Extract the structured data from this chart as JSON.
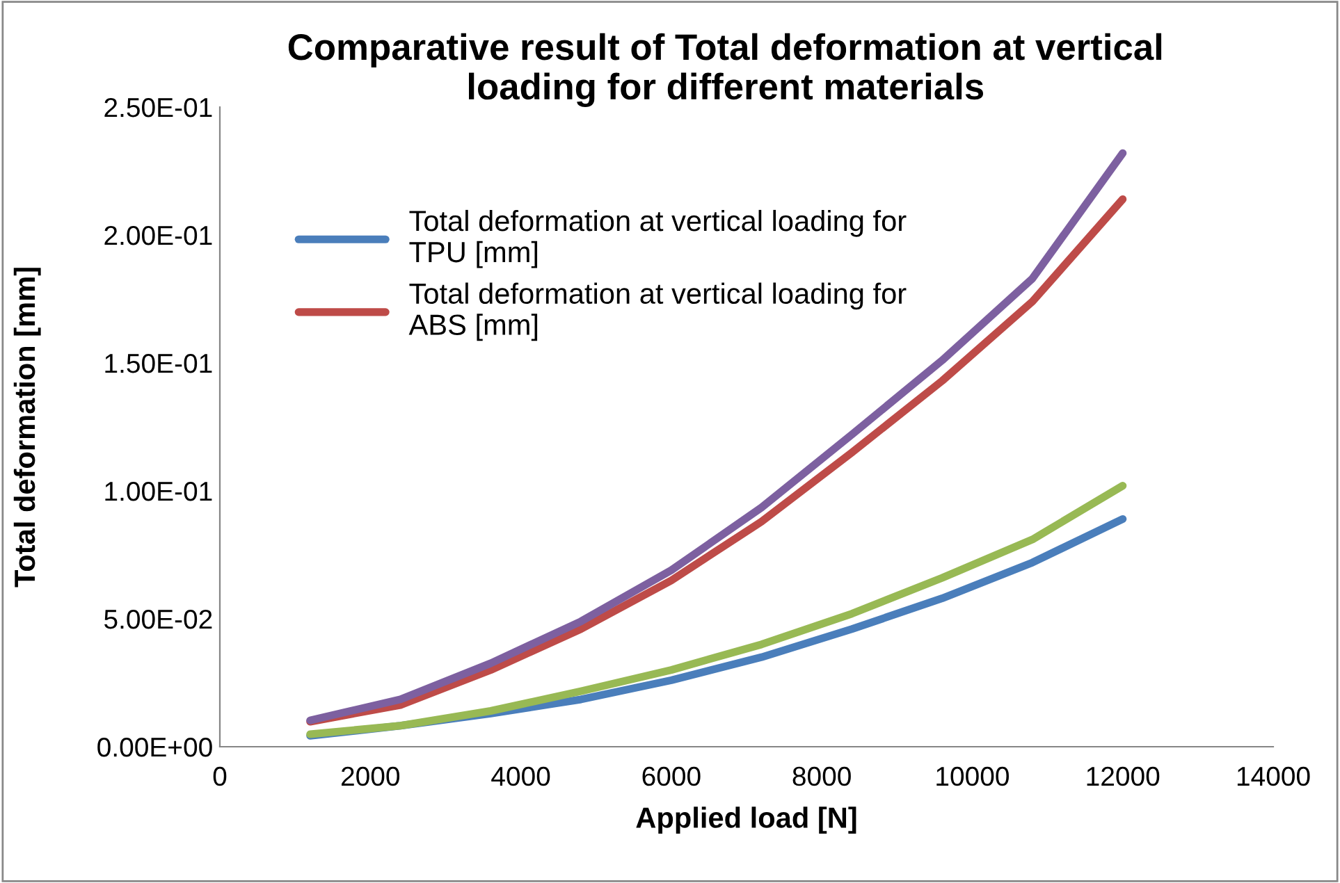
{
  "chart_data": {
    "type": "line",
    "title": "Comparative result of Total deformation at vertical\nloading for different materials",
    "xlabel": "Applied load [N]",
    "ylabel": "Total deformation [mm]",
    "x": [
      1200,
      2400,
      3600,
      4800,
      6000,
      7200,
      8400,
      9600,
      10800,
      12000
    ],
    "series": [
      {
        "name": "Total deformation at vertical loading for TPU [mm]",
        "color": "#4a7ebb",
        "values": [
          0.0043,
          0.0082,
          0.013,
          0.0185,
          0.026,
          0.035,
          0.046,
          0.058,
          0.072,
          0.089
        ]
      },
      {
        "name": "Total deformation at vertical loading for ABS [mm]",
        "color": "#be4b48",
        "values": [
          0.0098,
          0.0163,
          0.03,
          0.046,
          0.065,
          0.088,
          0.115,
          0.143,
          0.174,
          0.214
        ]
      },
      {
        "color": "#98b954",
        "values": [
          0.0049,
          0.0082,
          0.014,
          0.0217,
          0.03,
          0.04,
          0.052,
          0.066,
          0.081,
          0.102
        ]
      },
      {
        "color": "#7d60a0",
        "values": [
          0.0103,
          0.0185,
          0.0326,
          0.049,
          0.069,
          0.0935,
          0.122,
          0.151,
          0.183,
          0.232
        ]
      }
    ],
    "xlim": [
      0,
      14000
    ],
    "xticks": [
      0,
      2000,
      4000,
      6000,
      8000,
      10000,
      12000,
      14000
    ],
    "ylim": [
      0,
      0.25
    ],
    "yticks": [
      {
        "value": 0,
        "label": "0.00E+00"
      },
      {
        "value": 0.05,
        "label": "5.00E-02"
      },
      {
        "value": 0.1,
        "label": "1.00E-01"
      },
      {
        "value": 0.15,
        "label": "1.50E-01"
      },
      {
        "value": 0.2,
        "label": "2.00E-01"
      },
      {
        "value": 0.25,
        "label": "2.50E-01"
      }
    ],
    "grid": false,
    "legend": "top left",
    "marker": "none",
    "line_style": "solid"
  }
}
